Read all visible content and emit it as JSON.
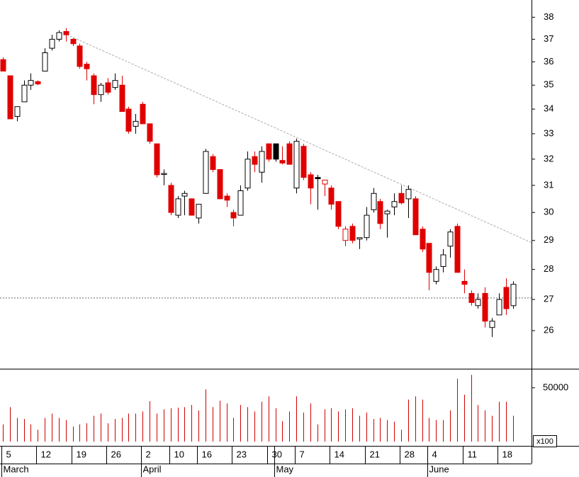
{
  "chart_data": {
    "type": "candlestick",
    "categories": [
      "5",
      null,
      null,
      null,
      null,
      "12",
      null,
      null,
      null,
      null,
      "19",
      null,
      null,
      null,
      null,
      "26",
      null,
      null,
      null,
      null,
      "2",
      null,
      null,
      null,
      "10",
      null,
      null,
      null,
      "16",
      null,
      null,
      null,
      null,
      "23",
      null,
      null,
      null,
      null,
      "30",
      null,
      null,
      null,
      "7",
      null,
      null,
      null,
      null,
      "14",
      null,
      null,
      null,
      null,
      "21",
      null,
      null,
      null,
      null,
      "28",
      null,
      null,
      null,
      "4",
      null,
      null,
      null,
      null,
      "11",
      null,
      null,
      null,
      null,
      "18",
      null,
      null
    ],
    "months": [
      {
        "value": 0,
        "label": "March"
      },
      {
        "value": 20,
        "label": "April"
      },
      {
        "value": 39,
        "label": "May"
      },
      {
        "value": 61,
        "label": "June"
      }
    ],
    "open": [
      36.1,
      35.4,
      33.7,
      34.3,
      35.0,
      35.15,
      35.6,
      36.6,
      37.0,
      37.35,
      37.0,
      36.7,
      35.9,
      35.4,
      34.6,
      35.1,
      34.9,
      35.0,
      34.0,
      33.3,
      34.2,
      33.4,
      32.6,
      31.45,
      31.0,
      29.9,
      30.6,
      30.5,
      29.8,
      30.7,
      32.1,
      31.6,
      30.6,
      30.0,
      29.9,
      30.9,
      32.1,
      31.5,
      32.6,
      32.6,
      31.95,
      32.6,
      30.9,
      32.5,
      31.4,
      31.3,
      31.05,
      30.9,
      30.4,
      29.0,
      29.5,
      29.05,
      29.1,
      30.1,
      30.4,
      29.95,
      30.2,
      30.7,
      30.5,
      30.5,
      29.4,
      28.9,
      27.6,
      28.1,
      28.8,
      29.5,
      27.6,
      27.2,
      26.8,
      27.2,
      26.1,
      26.5,
      27.4,
      26.8
    ],
    "high": [
      36.2,
      35.4,
      34.1,
      35.2,
      35.5,
      35.2,
      36.6,
      37.2,
      37.4,
      37.5,
      37.05,
      36.8,
      36.0,
      35.5,
      35.1,
      35.3,
      35.5,
      35.4,
      34.1,
      33.8,
      34.3,
      33.4,
      32.6,
      31.6,
      31.1,
      30.6,
      30.8,
      30.5,
      30.3,
      32.4,
      32.2,
      31.6,
      30.7,
      30.1,
      31.0,
      32.3,
      32.3,
      32.5,
      32.6,
      32.6,
      32.5,
      32.7,
      32.8,
      32.6,
      31.5,
      31.4,
      31.2,
      31.0,
      30.4,
      29.5,
      29.6,
      29.1,
      30.2,
      30.9,
      30.5,
      30.1,
      30.7,
      31.0,
      31.0,
      30.6,
      29.5,
      28.9,
      28.1,
      28.7,
      29.4,
      29.6,
      28.0,
      27.3,
      27.2,
      27.4,
      26.4,
      27.2,
      27.7,
      27.6
    ],
    "low": [
      35.6,
      33.6,
      33.5,
      34.3,
      34.8,
      35.0,
      35.6,
      36.5,
      36.9,
      36.9,
      36.7,
      35.7,
      35.2,
      34.2,
      34.3,
      34.6,
      34.8,
      33.9,
      33.0,
      33.0,
      33.4,
      32.6,
      31.3,
      31.0,
      29.9,
      29.8,
      29.9,
      29.9,
      29.6,
      30.7,
      31.5,
      30.5,
      30.2,
      29.5,
      29.9,
      30.8,
      31.5,
      31.1,
      31.9,
      31.9,
      31.8,
      31.8,
      30.7,
      31.2,
      30.3,
      30.1,
      30.6,
      30.1,
      29.4,
      28.8,
      28.9,
      28.7,
      29.0,
      30.0,
      29.4,
      29.1,
      29.9,
      30.3,
      29.8,
      29.2,
      28.6,
      27.3,
      27.5,
      27.9,
      28.4,
      27.9,
      27.2,
      26.8,
      26.7,
      26.1,
      25.8,
      26.5,
      26.5,
      26.7
    ],
    "close": [
      35.6,
      33.6,
      34.1,
      35.0,
      35.2,
      35.05,
      36.4,
      37.0,
      37.3,
      37.2,
      36.8,
      35.8,
      35.7,
      34.6,
      35.0,
      34.7,
      35.2,
      33.9,
      33.1,
      33.5,
      33.4,
      32.7,
      31.4,
      31.45,
      30.0,
      30.5,
      30.7,
      29.9,
      30.3,
      32.3,
      31.6,
      30.5,
      30.45,
      29.8,
      30.8,
      32.0,
      31.8,
      32.3,
      32.0,
      32.0,
      31.85,
      31.8,
      32.7,
      31.3,
      30.9,
      31.25,
      31.2,
      30.3,
      29.5,
      29.4,
      29.0,
      29.1,
      29.9,
      30.7,
      29.6,
      30.05,
      30.4,
      30.35,
      30.85,
      29.2,
      28.7,
      27.9,
      28.0,
      28.5,
      29.3,
      27.9,
      27.5,
      26.9,
      27.0,
      26.3,
      26.3,
      27.0,
      26.7,
      27.5
    ],
    "volume": [
      16000,
      32000,
      22000,
      21000,
      16000,
      11000,
      22000,
      26000,
      22000,
      20000,
      14000,
      16000,
      17000,
      24000,
      26000,
      17000,
      21000,
      22000,
      26000,
      26000,
      28000,
      37500,
      26000,
      30000,
      31000,
      31500,
      32000,
      34000,
      29000,
      48500,
      32000,
      38000,
      35500,
      22000,
      34000,
      32000,
      28000,
      37000,
      42000,
      31000,
      19000,
      28000,
      42000,
      27000,
      35500,
      16000,
      30000,
      31000,
      28000,
      30000,
      31000,
      24000,
      27000,
      21000,
      22000,
      20000,
      18500,
      11000,
      39000,
      42000,
      39000,
      22000,
      20000,
      20000,
      29000,
      58500,
      43500,
      62000,
      34000,
      29000,
      24000,
      37000,
      37000,
      24000
    ],
    "up_color": "#000000",
    "down_color": "#e00000",
    "volume_color": "#d00000",
    "log_scale": true,
    "ylim": [
      24.85,
      38.8
    ],
    "yticks": [
      26,
      27,
      28,
      29,
      30,
      31,
      32,
      33,
      34,
      35,
      36,
      37,
      38
    ],
    "volume_ylim": [
      0,
      67000
    ],
    "volume_yticks": [
      50000
    ],
    "volume_unit": "x100",
    "trendline": {
      "x": [
        8.7,
        75.7
      ],
      "y": [
        37.27,
        28.92
      ],
      "color": "#aaaaaa"
    },
    "hline": {
      "value": 27.05,
      "color": "#666666"
    }
  }
}
